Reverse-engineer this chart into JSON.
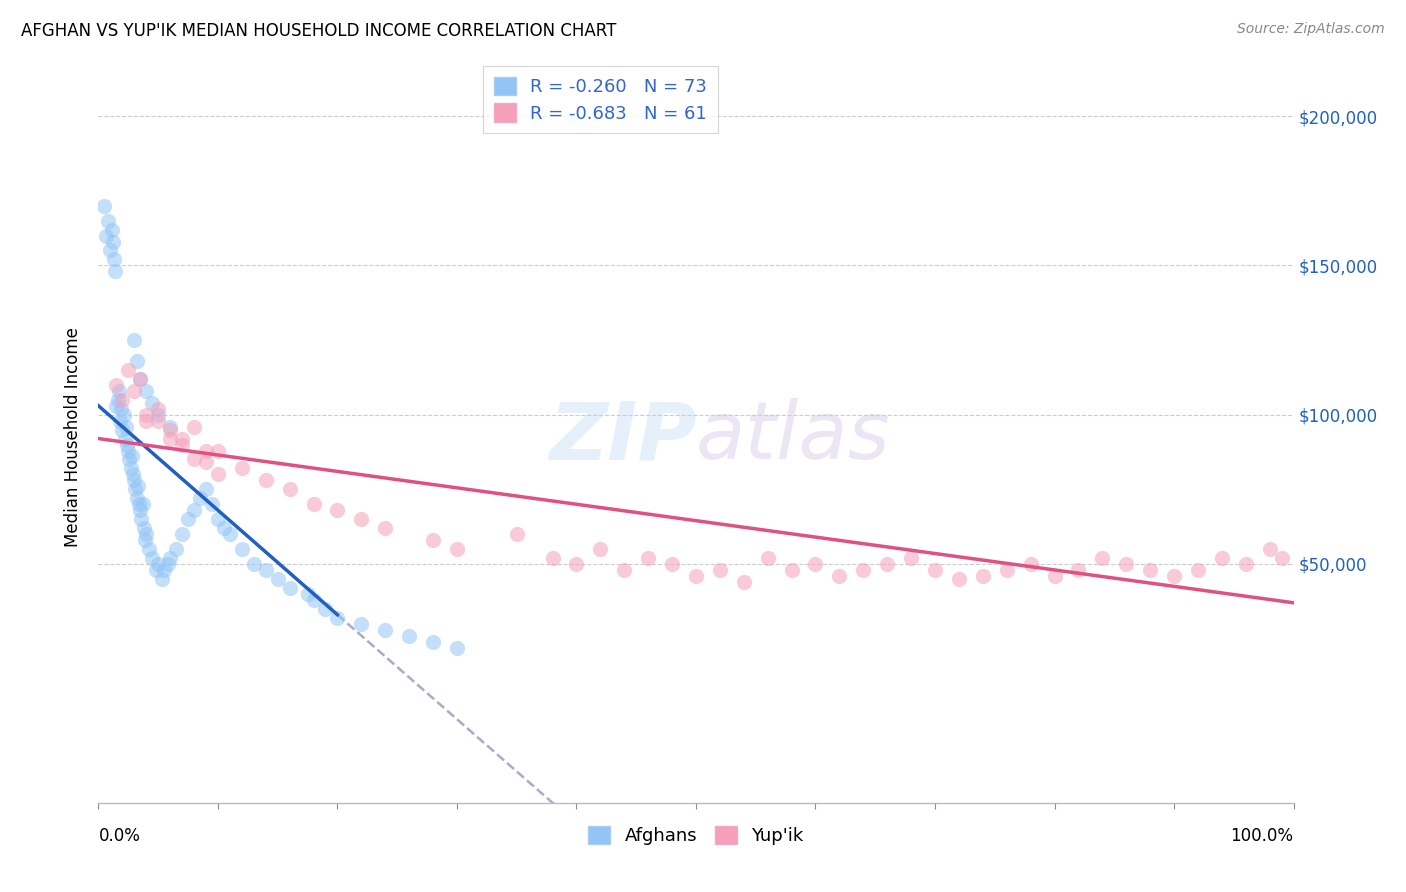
{
  "title": "AFGHAN VS YUP'IK MEDIAN HOUSEHOLD INCOME CORRELATION CHART",
  "source": "Source: ZipAtlas.com",
  "ylabel": "Median Household Income",
  "legend_afghans": "R = -0.260   N = 73",
  "legend_yupik": "R = -0.683   N = 61",
  "ytick_labels": [
    "$50,000",
    "$100,000",
    "$150,000",
    "$200,000"
  ],
  "ytick_values": [
    50000,
    100000,
    150000,
    200000
  ],
  "blue_color": "#92c5f5",
  "pink_color": "#f5a0b8",
  "blue_line_color": "#2060c0",
  "pink_line_color": "#e05080",
  "dashed_color": "#aaaacc",
  "grid_color": "#cccccc",
  "ymin": -30000,
  "ymax": 215000,
  "xmin": 0,
  "xmax": 100,
  "title_fontsize": 12,
  "source_fontsize": 10,
  "axis_label_fontsize": 12,
  "tick_label_fontsize": 12,
  "legend_fontsize": 13,
  "marker_size": 120,
  "marker_alpha": 0.55,
  "blue_intercept": 103000,
  "blue_slope": -3500,
  "pink_intercept": 92000,
  "pink_slope": -550,
  "afghans_x": [
    0.5,
    0.6,
    0.8,
    1.0,
    1.1,
    1.2,
    1.3,
    1.4,
    1.5,
    1.6,
    1.7,
    1.8,
    1.9,
    2.0,
    2.1,
    2.2,
    2.3,
    2.4,
    2.5,
    2.6,
    2.7,
    2.8,
    2.9,
    3.0,
    3.1,
    3.2,
    3.3,
    3.4,
    3.5,
    3.6,
    3.7,
    3.8,
    3.9,
    4.0,
    4.2,
    4.5,
    4.8,
    5.0,
    5.3,
    5.5,
    5.8,
    6.0,
    6.5,
    7.0,
    7.5,
    8.0,
    8.5,
    9.0,
    9.5,
    10.0,
    10.5,
    11.0,
    12.0,
    13.0,
    14.0,
    15.0,
    16.0,
    17.5,
    18.0,
    19.0,
    20.0,
    22.0,
    24.0,
    26.0,
    28.0,
    30.0,
    3.0,
    3.2,
    3.5,
    4.0,
    4.5,
    5.0,
    6.0
  ],
  "afghans_y": [
    170000,
    160000,
    165000,
    155000,
    162000,
    158000,
    152000,
    148000,
    103000,
    105000,
    108000,
    98000,
    102000,
    95000,
    100000,
    92000,
    96000,
    90000,
    88000,
    85000,
    82000,
    86000,
    80000,
    78000,
    75000,
    72000,
    76000,
    70000,
    68000,
    65000,
    70000,
    62000,
    58000,
    60000,
    55000,
    52000,
    48000,
    50000,
    45000,
    48000,
    50000,
    52000,
    55000,
    60000,
    65000,
    68000,
    72000,
    75000,
    70000,
    65000,
    62000,
    60000,
    55000,
    50000,
    48000,
    45000,
    42000,
    40000,
    38000,
    35000,
    32000,
    30000,
    28000,
    26000,
    24000,
    22000,
    125000,
    118000,
    112000,
    108000,
    104000,
    100000,
    96000
  ],
  "yupik_x": [
    1.5,
    2.0,
    2.5,
    3.0,
    3.5,
    4.0,
    5.0,
    6.0,
    7.0,
    8.0,
    9.0,
    10.0,
    12.0,
    14.0,
    16.0,
    18.0,
    20.0,
    22.0,
    24.0,
    28.0,
    30.0,
    35.0,
    38.0,
    40.0,
    42.0,
    44.0,
    46.0,
    48.0,
    50.0,
    52.0,
    54.0,
    56.0,
    58.0,
    60.0,
    62.0,
    64.0,
    66.0,
    68.0,
    70.0,
    72.0,
    74.0,
    76.0,
    78.0,
    80.0,
    82.0,
    84.0,
    86.0,
    88.0,
    90.0,
    92.0,
    94.0,
    96.0,
    98.0,
    99.0,
    6.0,
    8.0,
    10.0,
    4.0,
    5.0,
    7.0,
    9.0
  ],
  "yupik_y": [
    110000,
    105000,
    115000,
    108000,
    112000,
    98000,
    102000,
    95000,
    90000,
    85000,
    88000,
    80000,
    82000,
    78000,
    75000,
    70000,
    68000,
    65000,
    62000,
    58000,
    55000,
    60000,
    52000,
    50000,
    55000,
    48000,
    52000,
    50000,
    46000,
    48000,
    44000,
    52000,
    48000,
    50000,
    46000,
    48000,
    50000,
    52000,
    48000,
    45000,
    46000,
    48000,
    50000,
    46000,
    48000,
    52000,
    50000,
    48000,
    46000,
    48000,
    52000,
    50000,
    55000,
    52000,
    92000,
    96000,
    88000,
    100000,
    98000,
    92000,
    84000
  ]
}
